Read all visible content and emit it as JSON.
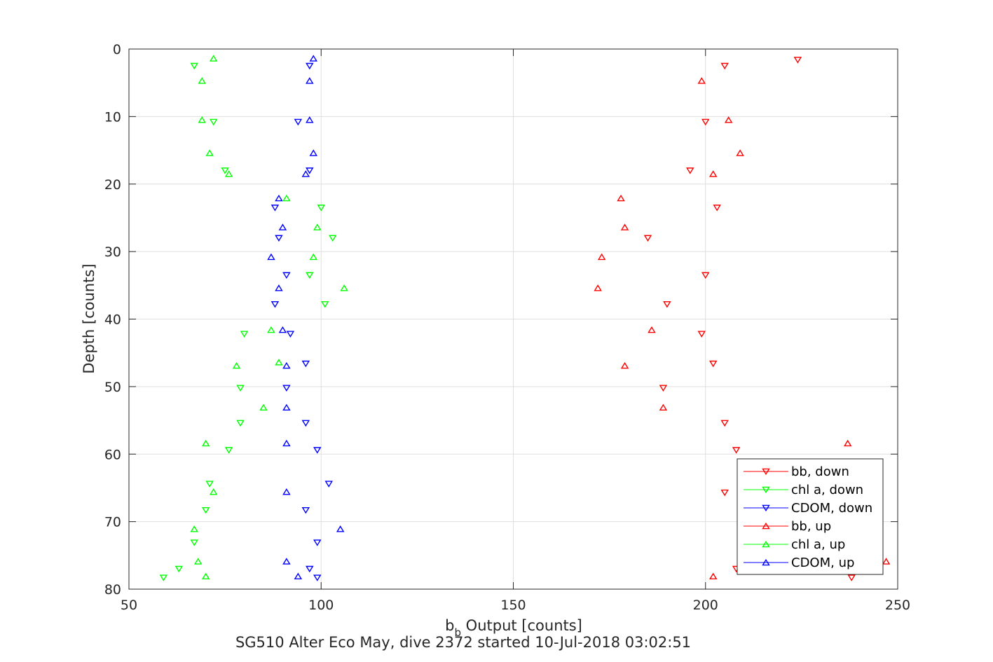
{
  "chart_data": {
    "type": "scatter",
    "xlabel_main": "b",
    "xlabel_sub": "b",
    "xlabel_rest": " Output [counts]",
    "ylabel": "Depth [counts]",
    "caption": "SG510 Alter Eco May, dive 2372 started 10-Jul-2018 03:02:51",
    "xlim": [
      50,
      250
    ],
    "ylim": [
      0,
      80
    ],
    "y_reversed": true,
    "grid": true,
    "legend_position": "bottom-right",
    "x_ticks": [
      "50",
      "100",
      "150",
      "200",
      "250"
    ],
    "y_ticks": [
      "0",
      "10",
      "20",
      "30",
      "40",
      "50",
      "60",
      "70",
      "80"
    ],
    "series": [
      {
        "name": "bb, down",
        "color": "#ff0000",
        "marker": "down",
        "points": [
          [
            224,
            1.6
          ],
          [
            205,
            2.5
          ],
          [
            200,
            10.8
          ],
          [
            196,
            18
          ],
          [
            203,
            23.5
          ],
          [
            185,
            28
          ],
          [
            200,
            33.5
          ],
          [
            190,
            37.8
          ],
          [
            199,
            42.2
          ],
          [
            202,
            46.6
          ],
          [
            189,
            50.2
          ],
          [
            205,
            55.4
          ],
          [
            208,
            59.4
          ],
          [
            205,
            65.7
          ],
          [
            208,
            77
          ],
          [
            238,
            78.3
          ]
        ]
      },
      {
        "name": "chl a, down",
        "color": "#00ff00",
        "marker": "down",
        "points": [
          [
            67,
            2.5
          ],
          [
            72,
            10.8
          ],
          [
            75,
            18
          ],
          [
            100,
            23.5
          ],
          [
            103,
            28
          ],
          [
            97,
            33.5
          ],
          [
            101,
            37.8
          ],
          [
            80,
            42.2
          ],
          [
            79,
            50.2
          ],
          [
            79,
            55.4
          ],
          [
            76,
            59.4
          ],
          [
            71,
            64.4
          ],
          [
            70,
            68.3
          ],
          [
            67,
            73.1
          ],
          [
            63,
            77
          ],
          [
            59,
            78.3
          ]
        ]
      },
      {
        "name": "CDOM, down",
        "color": "#0000ff",
        "marker": "down",
        "points": [
          [
            97,
            2.5
          ],
          [
            94,
            10.8
          ],
          [
            97,
            18
          ],
          [
            88,
            23.5
          ],
          [
            89,
            28
          ],
          [
            91,
            33.5
          ],
          [
            88,
            37.8
          ],
          [
            92,
            42.2
          ],
          [
            96,
            46.6
          ],
          [
            91,
            50.2
          ],
          [
            96,
            55.4
          ],
          [
            99,
            59.4
          ],
          [
            102,
            64.4
          ],
          [
            96,
            68.3
          ],
          [
            99,
            73.1
          ],
          [
            97,
            77
          ],
          [
            99,
            78.3
          ]
        ]
      },
      {
        "name": "bb, up",
        "color": "#ff0000",
        "marker": "up",
        "points": [
          [
            199,
            4.7
          ],
          [
            206,
            10.5
          ],
          [
            209,
            15.4
          ],
          [
            202,
            18.5
          ],
          [
            178,
            22.1
          ],
          [
            179,
            26.4
          ],
          [
            173,
            30.8
          ],
          [
            172,
            35.4
          ],
          [
            186,
            41.6
          ],
          [
            179,
            46.9
          ],
          [
            189,
            53.1
          ],
          [
            237,
            58.4
          ],
          [
            247,
            75.9
          ],
          [
            202,
            78.1
          ]
        ]
      },
      {
        "name": "chl a, up",
        "color": "#00ff00",
        "marker": "up",
        "points": [
          [
            72,
            1.4
          ],
          [
            69,
            4.7
          ],
          [
            69,
            10.5
          ],
          [
            71,
            15.4
          ],
          [
            76,
            18.5
          ],
          [
            91,
            22.1
          ],
          [
            99,
            26.4
          ],
          [
            98,
            30.8
          ],
          [
            106,
            35.4
          ],
          [
            87,
            41.6
          ],
          [
            78,
            46.9
          ],
          [
            89,
            46.4
          ],
          [
            85,
            53.1
          ],
          [
            70,
            58.4
          ],
          [
            72,
            65.6
          ],
          [
            67,
            71.1
          ],
          [
            68,
            75.9
          ],
          [
            70,
            78.1
          ]
        ]
      },
      {
        "name": "CDOM, up",
        "color": "#0000ff",
        "marker": "up",
        "points": [
          [
            98,
            1.4
          ],
          [
            97,
            4.7
          ],
          [
            97,
            10.5
          ],
          [
            98,
            15.4
          ],
          [
            96,
            18.5
          ],
          [
            89,
            22.1
          ],
          [
            90,
            26.4
          ],
          [
            87,
            30.8
          ],
          [
            89,
            35.4
          ],
          [
            90,
            41.6
          ],
          [
            91,
            46.9
          ],
          [
            91,
            53.1
          ],
          [
            91,
            58.4
          ],
          [
            91,
            65.6
          ],
          [
            105,
            71.1
          ],
          [
            91,
            75.9
          ],
          [
            94,
            78.1
          ]
        ]
      }
    ]
  }
}
